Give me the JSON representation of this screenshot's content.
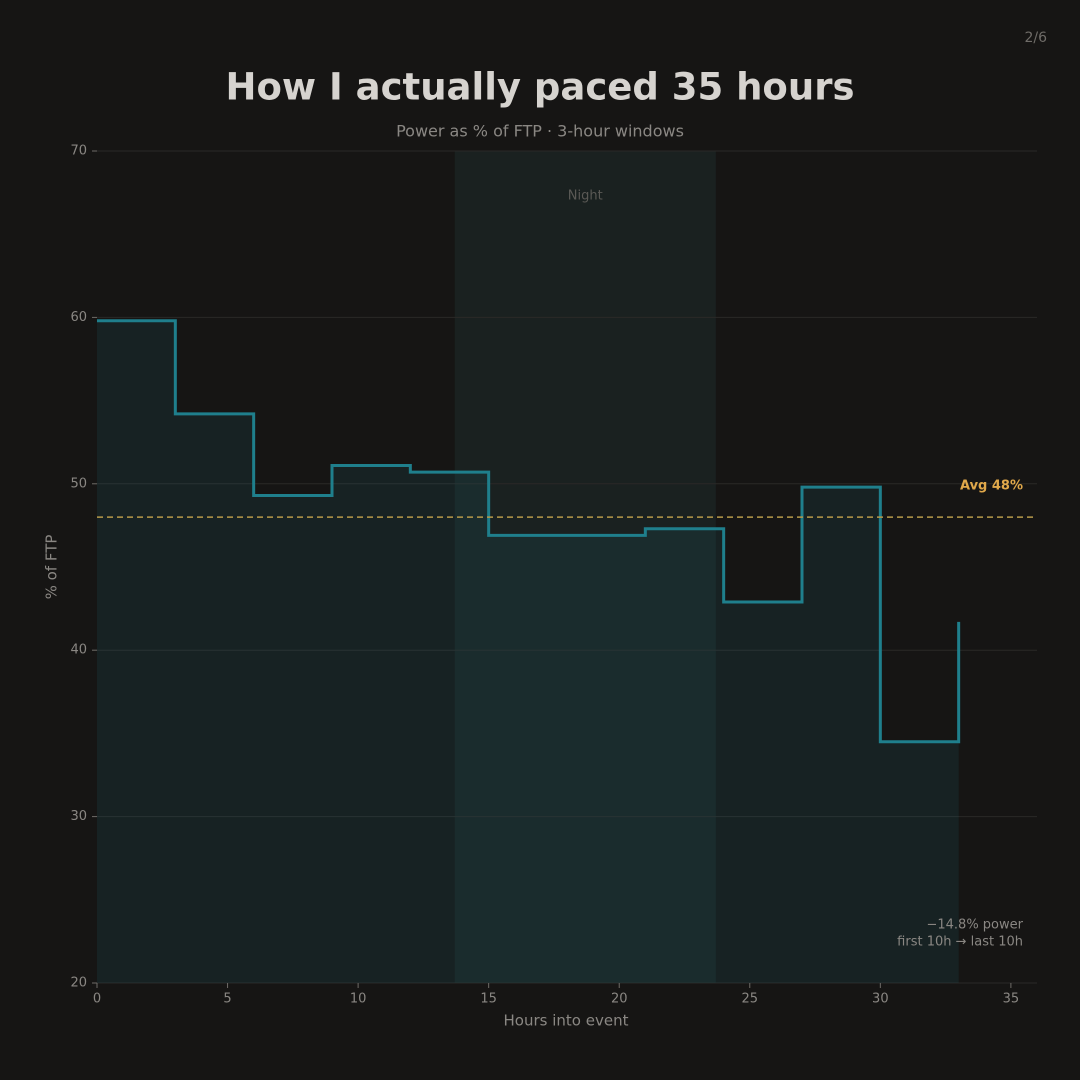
{
  "page_number": "2/6",
  "chart_data": {
    "type": "step",
    "title": "How I actually paced 35 hours",
    "subtitle": "Power as % of FTP · 3-hour windows",
    "x_label": "Hours into event",
    "y_label": "% of FTP",
    "x": [
      0,
      3,
      6,
      9,
      12,
      15,
      18,
      21,
      24,
      27,
      30,
      33
    ],
    "values": [
      59.8,
      54.2,
      49.3,
      51.1,
      50.7,
      46.9,
      46.9,
      47.3,
      42.9,
      49.8,
      34.5,
      41.7
    ],
    "color": "#1f7f8c",
    "xlim": [
      0,
      36
    ],
    "ylim": [
      20,
      70
    ],
    "xticks": [
      0,
      5,
      10,
      15,
      20,
      25,
      30,
      35
    ],
    "yticks": [
      20,
      30,
      40,
      50,
      60,
      70
    ],
    "grid": true,
    "night": {
      "range": [
        13.7,
        23.7
      ],
      "label": "Night"
    },
    "average": {
      "value": 48,
      "label": "Avg 48%",
      "color": "#b89a4a"
    },
    "annotation": [
      "−14.8% power",
      "first 10h → last 10h"
    ]
  }
}
